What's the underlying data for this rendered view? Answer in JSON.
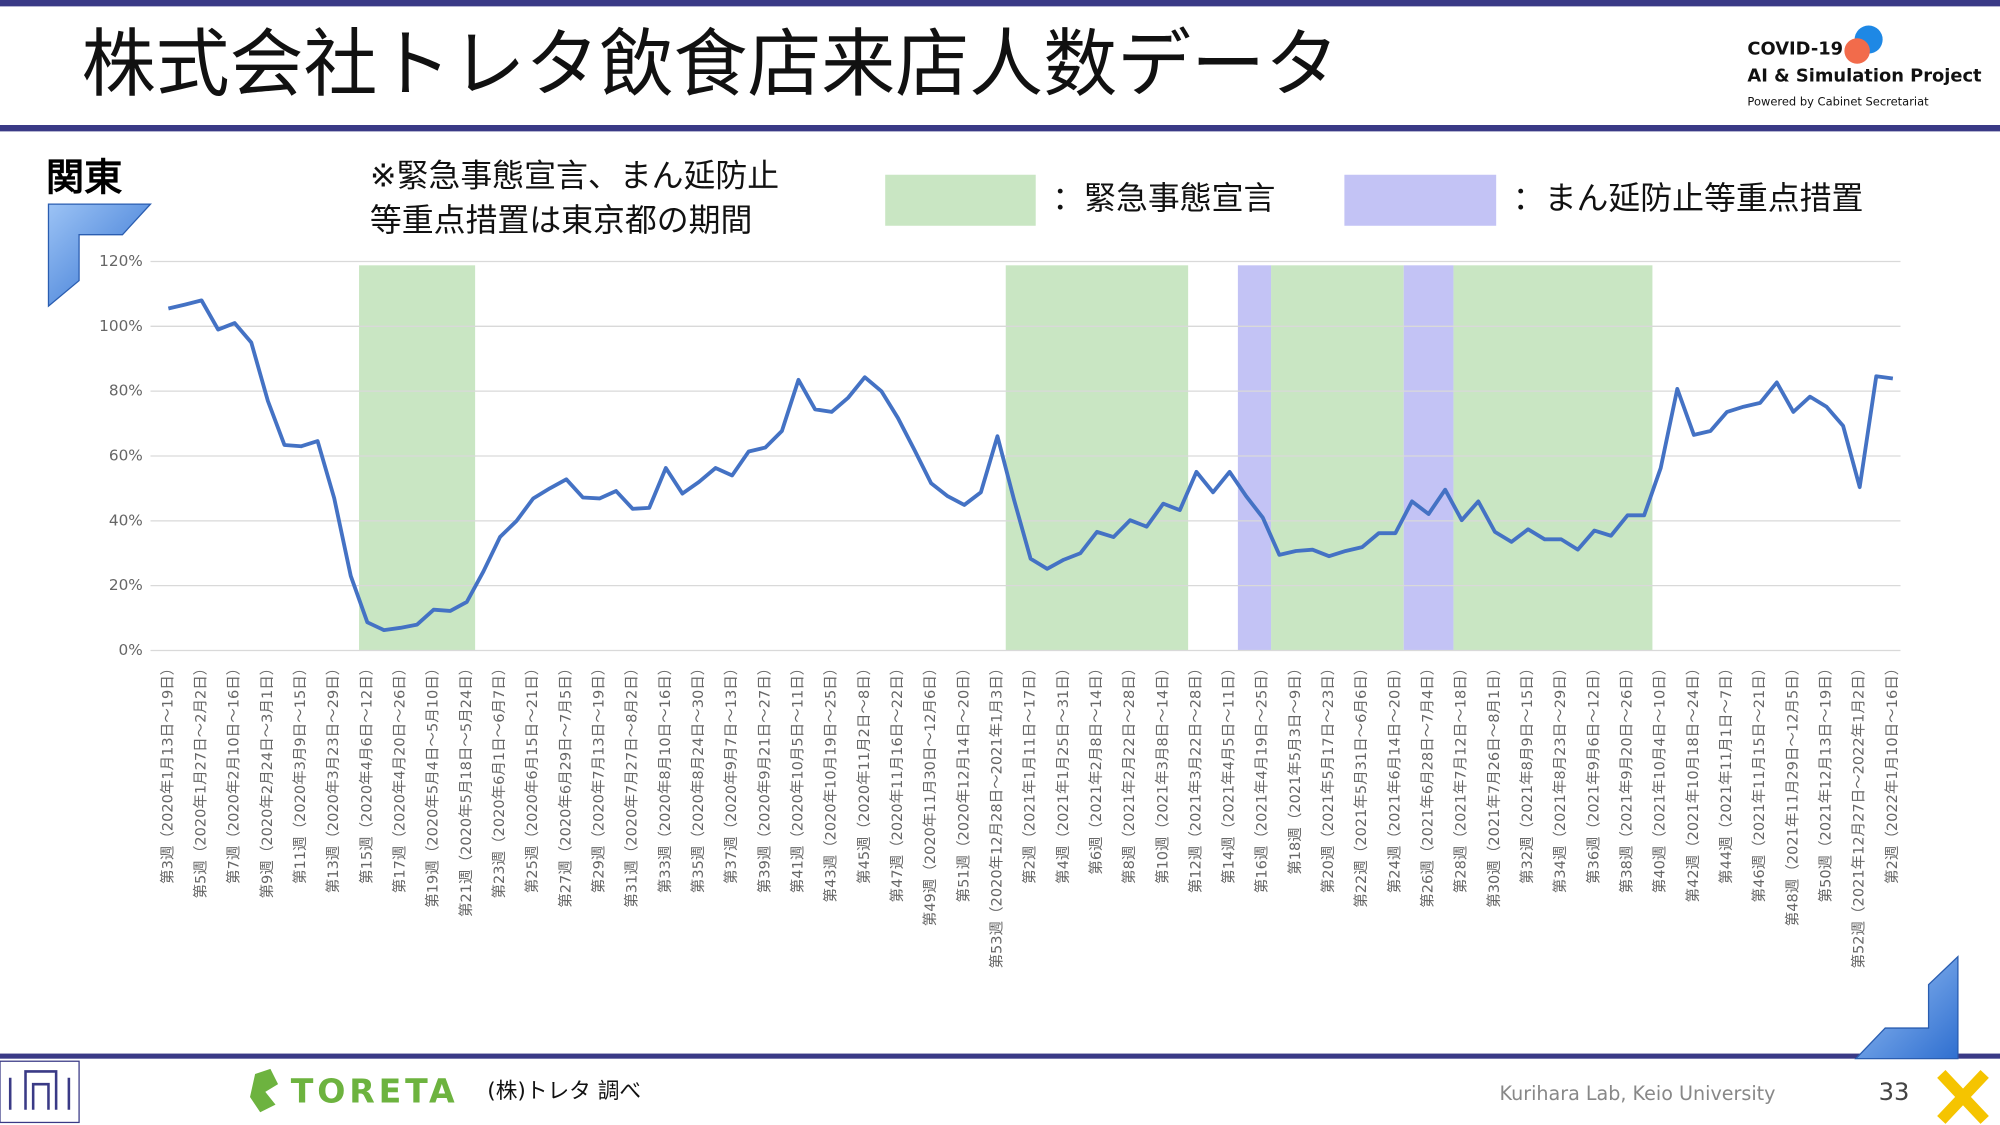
{
  "header": {
    "title": "株式会社トレタ飲食店来店人数データ",
    "logo_lines": [
      "COVID-19",
      "AI & Simulation Project",
      "Powered by Cabinet Secretariat"
    ]
  },
  "region": "関東",
  "note": [
    "※緊急事態宣言、まん延防止",
    "等重点措置は東京都の期間"
  ],
  "footer": {
    "brand": "TORETA",
    "source": "(株)トレタ 調べ",
    "lab": "Kurihara Lab, Keio University",
    "page": "33"
  },
  "chart_data": {
    "type": "line",
    "categories": [
      "第3週（2020年1月13日～19日）",
      null,
      "第5週（2020年1月27日～2月2日）",
      null,
      "第7週（2020年2月10日～16日）",
      null,
      "第9週（2020年2月24日～3月1日）",
      null,
      "第11週（2020年3月9日～15日）",
      null,
      "第13週（2020年3月23日～29日）",
      null,
      "第15週（2020年4月6日～12日）",
      null,
      "第17週（2020年4月20日～26日）",
      null,
      "第19週（2020年5月4日～5月10日）",
      null,
      "第21週（2020年5月18日～5月24日）",
      null,
      "第23週（2020年6月1日～6月7日）",
      null,
      "第25週（2020年6月15日～21日）",
      null,
      "第27週（2020年6月29日～7月5日）",
      null,
      "第29週（2020年7月13日～19日）",
      null,
      "第31週（2020年7月27日～8月2日）",
      null,
      "第33週（2020年8月10日～16日）",
      null,
      "第35週（2020年8月24日～30日）",
      null,
      "第37週（2020年9月7日～13日）",
      null,
      "第39週（2020年9月21日～27日）",
      null,
      "第41週（2020年10月5日～11日）",
      null,
      "第43週（2020年10月19日～25日）",
      null,
      "第45週（2020年11月2日～8日）",
      null,
      "第47週（2020年11月16日～22日）",
      null,
      "第49週（2020年11月30日～12月6日）",
      null,
      "第51週（2020年12月14日～20日）",
      null,
      "第53週（2020年12月28日～2021年1月3日）",
      null,
      "第2週（2021年1月11日～17日）",
      null,
      "第4週（2021年1月25日～31日）",
      null,
      "第6週（2021年2月8日～14日）",
      null,
      "第8週（2021年2月22日～28日）",
      null,
      "第10週（2021年3月8日～14日）",
      null,
      "第12週（2021年3月22日～28日）",
      null,
      "第14週（2021年4月5日～11日）",
      null,
      "第16週（2021年4月19日～25日）",
      null,
      "第18週（2021年5月3日～9日）",
      null,
      "第20週（2021年5月17日～23日）",
      null,
      "第22週（2021年5月31日～6月6日）",
      null,
      "第24週（2021年6月14日～20日）",
      null,
      "第26週（2021年6月28日～7月4日）",
      null,
      "第28週（2021年7月12日～18日）",
      null,
      "第30週（2021年7月26日～8月1日）",
      null,
      "第32週（2021年8月9日～15日）",
      null,
      "第34週（2021年8月23日～29日）",
      null,
      "第36週（2021年9月6日～12日）",
      null,
      "第38週（2021年9月20日～26日）",
      null,
      "第40週（2021年10月4日～10日）",
      null,
      "第42週（2021年10月18日～24日）",
      null,
      "第44週（2021年11月1日～7日）",
      null,
      "第46週（2021年11月15日～21日）",
      null,
      "第48週（2021年11月29日～12月5日）",
      null,
      "第50週（2021年12月13日～19日）",
      null,
      "第52週（2021年12月27日～2022年1月2日）",
      null,
      "第2週（2022年1月10日～16日）"
    ],
    "series": [
      {
        "color": "#4472c4",
        "values": [
          105.5,
          106.7,
          108,
          99,
          101,
          95,
          77,
          63.4,
          63,
          64.6,
          47,
          23,
          8.7,
          6.3,
          7,
          8,
          12.6,
          12.2,
          15,
          24.4,
          35,
          40,
          46.9,
          50,
          52.8,
          47.2,
          46.9,
          49.2,
          43.7,
          44,
          56.3,
          48.4,
          52,
          56.3,
          54,
          61.4,
          62.6,
          67.7,
          83.5,
          74.4,
          73.6,
          78,
          84.3,
          80,
          71.7,
          61.8,
          51.6,
          47.6,
          44.9,
          48.8,
          66.1,
          46.5,
          28.3,
          25.2,
          28,
          30,
          36.6,
          35,
          40.2,
          38.2,
          45.3,
          43.3,
          55.1,
          48.8,
          55.1,
          47.6,
          41,
          29.5,
          30.7,
          31.1,
          29.1,
          30.7,
          31.9,
          36.2,
          36.2,
          46,
          42.1,
          49.6,
          40.2,
          46,
          36.6,
          33.5,
          37.4,
          34.3,
          34.3,
          31.1,
          37,
          35.4,
          41.7,
          41.7,
          56.3,
          80.7,
          66.5,
          67.7,
          73.6,
          75.2,
          76.4,
          82.7,
          73.6,
          78.3,
          75.2,
          69.3,
          50.4,
          84.6,
          83.9
        ]
      }
    ],
    "ylim": [
      0,
      120
    ],
    "yticks": [
      {
        "value": 0,
        "label": "0%"
      },
      {
        "value": 20,
        "label": "20%"
      },
      {
        "value": 40,
        "label": "40%"
      },
      {
        "value": 60,
        "label": "60%"
      },
      {
        "value": 80,
        "label": "80%"
      },
      {
        "value": 100,
        "label": "100%"
      },
      {
        "value": 120,
        "label": "120%"
      }
    ],
    "grid": true,
    "legend": [
      {
        "label": "：緊急事態宣言",
        "color": "#c9e6c3",
        "periods": [
          [
            11.5,
            18.5
          ],
          [
            50.5,
            61.5
          ],
          [
            66.5,
            74.5
          ],
          [
            77.5,
            89.5
          ]
        ]
      },
      {
        "label": "：まん延防止等重点措置",
        "color": "#c3c3f5",
        "periods": [
          [
            64.5,
            66.5
          ],
          [
            74.5,
            77.5
          ]
        ]
      }
    ]
  }
}
